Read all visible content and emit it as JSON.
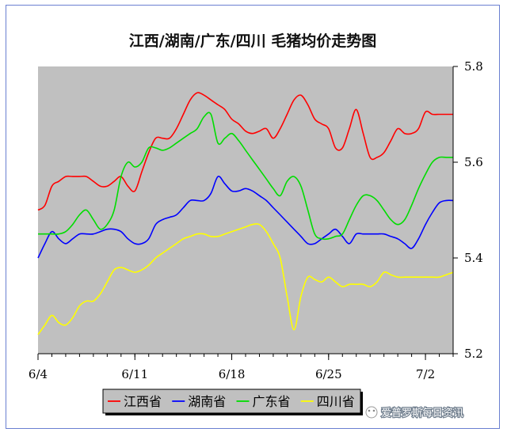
{
  "chart_data": {
    "type": "line",
    "title": "江西/湖南/广东/四川 毛猪均价走势图",
    "xlabel": "",
    "ylabel": "",
    "x_tick_labels": [
      "6/4",
      "6/11",
      "6/18",
      "6/25",
      "7/2"
    ],
    "ylim": [
      5.2,
      5.8
    ],
    "y_ticks": [
      5.2,
      5.4,
      5.6,
      5.8
    ],
    "grid": false,
    "legend_position": "bottom",
    "y_axis_side": "right",
    "x": [
      0,
      0.5,
      1,
      1.5,
      2,
      2.5,
      3,
      3.5,
      4,
      4.5,
      5,
      5.5,
      6,
      6.5,
      7,
      7.5,
      8,
      8.5,
      9,
      9.5,
      10,
      10.5,
      11,
      11.5,
      12,
      12.5,
      13,
      13.5,
      14,
      14.5,
      15,
      15.5,
      16,
      16.5,
      17,
      17.5,
      18,
      18.5,
      19,
      19.5,
      20,
      20.5,
      21,
      21.5,
      22,
      22.5,
      23,
      23.5,
      24,
      24.5,
      25,
      25.5,
      26,
      26.5,
      27,
      27.5,
      28,
      28.5,
      29,
      29.5,
      30
    ],
    "series": [
      {
        "name": "江西省",
        "color": "#ff0000",
        "values": [
          5.5,
          5.51,
          5.55,
          5.56,
          5.57,
          5.57,
          5.57,
          5.57,
          5.56,
          5.55,
          5.55,
          5.56,
          5.57,
          5.55,
          5.54,
          5.58,
          5.62,
          5.65,
          5.65,
          5.65,
          5.67,
          5.7,
          5.73,
          5.745,
          5.74,
          5.73,
          5.72,
          5.71,
          5.69,
          5.68,
          5.665,
          5.66,
          5.665,
          5.67,
          5.65,
          5.67,
          5.7,
          5.73,
          5.74,
          5.72,
          5.69,
          5.68,
          5.67,
          5.63,
          5.63,
          5.67,
          5.71,
          5.66,
          5.61,
          5.61,
          5.62,
          5.645,
          5.67,
          5.66,
          5.66,
          5.67,
          5.705,
          5.7,
          5.7,
          5.7,
          5.7
        ]
      },
      {
        "name": "湖南省",
        "color": "#0000ff",
        "values": [
          5.4,
          5.43,
          5.455,
          5.44,
          5.43,
          5.44,
          5.45,
          5.45,
          5.45,
          5.455,
          5.46,
          5.46,
          5.455,
          5.44,
          5.43,
          5.43,
          5.44,
          5.47,
          5.48,
          5.485,
          5.49,
          5.505,
          5.52,
          5.52,
          5.52,
          5.535,
          5.57,
          5.555,
          5.54,
          5.54,
          5.545,
          5.54,
          5.53,
          5.52,
          5.505,
          5.49,
          5.475,
          5.46,
          5.445,
          5.43,
          5.43,
          5.44,
          5.45,
          5.46,
          5.445,
          5.43,
          5.45,
          5.45,
          5.45,
          5.45,
          5.45,
          5.445,
          5.44,
          5.43,
          5.42,
          5.44,
          5.47,
          5.495,
          5.515,
          5.52,
          5.52
        ]
      },
      {
        "name": "广东省",
        "color": "#00dd00",
        "values": [
          5.45,
          5.45,
          5.45,
          5.45,
          5.455,
          5.47,
          5.49,
          5.5,
          5.48,
          5.46,
          5.47,
          5.5,
          5.57,
          5.6,
          5.59,
          5.6,
          5.63,
          5.63,
          5.625,
          5.63,
          5.64,
          5.65,
          5.66,
          5.67,
          5.695,
          5.7,
          5.64,
          5.65,
          5.66,
          5.645,
          5.625,
          5.605,
          5.585,
          5.565,
          5.545,
          5.53,
          5.56,
          5.57,
          5.55,
          5.5,
          5.45,
          5.44,
          5.44,
          5.445,
          5.45,
          5.48,
          5.51,
          5.53,
          5.53,
          5.52,
          5.5,
          5.48,
          5.47,
          5.48,
          5.51,
          5.545,
          5.575,
          5.6,
          5.61,
          5.61,
          5.61
        ]
      },
      {
        "name": "四川省",
        "color": "#ffff00",
        "values": [
          5.24,
          5.26,
          5.28,
          5.265,
          5.26,
          5.275,
          5.3,
          5.31,
          5.31,
          5.325,
          5.35,
          5.375,
          5.38,
          5.375,
          5.37,
          5.375,
          5.385,
          5.4,
          5.41,
          5.42,
          5.43,
          5.44,
          5.445,
          5.45,
          5.45,
          5.445,
          5.445,
          5.45,
          5.455,
          5.46,
          5.465,
          5.47,
          5.47,
          5.455,
          5.43,
          5.4,
          5.32,
          5.25,
          5.32,
          5.36,
          5.355,
          5.35,
          5.36,
          5.35,
          5.34,
          5.345,
          5.345,
          5.345,
          5.34,
          5.35,
          5.37,
          5.365,
          5.36,
          5.36,
          5.36,
          5.36,
          5.36,
          5.36,
          5.36,
          5.365,
          5.37
        ]
      }
    ],
    "plot_background": "#c0c0c0"
  },
  "watermark": {
    "text": "爱普罗斯每日资讯"
  }
}
